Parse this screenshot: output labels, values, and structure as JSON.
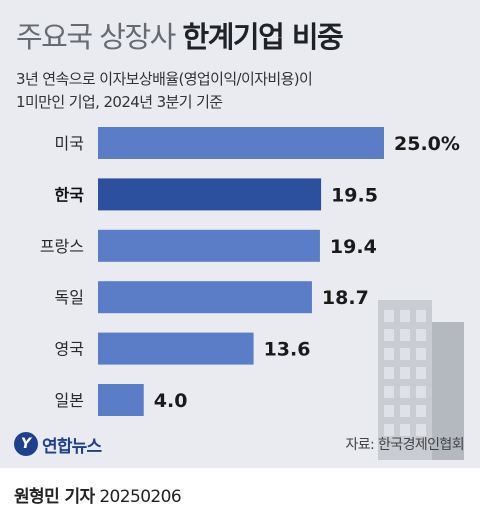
{
  "header": {
    "title_light": "주요국 상장사",
    "title_bold": "한계기업 비중",
    "subtitle_line1": "3년 연속으로 이자보상배율(영업이익/이자비용)이",
    "subtitle_line2": "1미만인 기업, 2024년 3분기 기준"
  },
  "chart_data": {
    "type": "bar",
    "orientation": "horizontal",
    "categories": [
      "미국",
      "한국",
      "프랑스",
      "독일",
      "영국",
      "일본"
    ],
    "values": [
      25.0,
      19.5,
      19.4,
      18.7,
      13.6,
      4.0
    ],
    "value_labels": [
      "25.0%",
      "19.5",
      "19.4",
      "18.7",
      "13.6",
      "4.0"
    ],
    "highlight": "한국",
    "xlim": [
      0,
      25
    ],
    "grid": false,
    "colors": {
      "bar": "#5b7dc8",
      "highlight": "#2c4f9e"
    }
  },
  "footer": {
    "logo_mark": "Y",
    "logo_text": "연합뉴스",
    "source": "자료: 한국경제인협회",
    "author": "원형민 기자",
    "date": "20250206"
  }
}
